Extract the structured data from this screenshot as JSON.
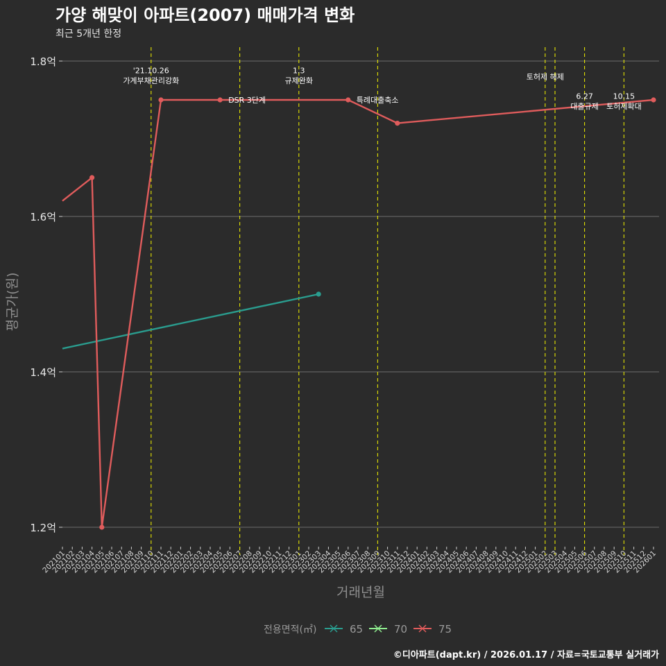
{
  "chart_data": {
    "type": "line",
    "title": "가양 해맞이 아파트(2007) 매매가격 변화",
    "subtitle": "최근 5개년 한정",
    "xlabel": "거래년월",
    "ylabel": "평균가(원)",
    "y_ticks": [
      {
        "value": 1.2,
        "label": "1.2억"
      },
      {
        "value": 1.4,
        "label": "1.4억"
      },
      {
        "value": 1.6,
        "label": "1.6억"
      },
      {
        "value": 1.8,
        "label": "1.8억"
      }
    ],
    "ylim": [
      1.175,
      1.825
    ],
    "x_categories": [
      "202101",
      "202102",
      "202103",
      "202104",
      "202105",
      "202106",
      "202107",
      "202108",
      "202109",
      "202110",
      "202111",
      "202112",
      "202201",
      "202202",
      "202203",
      "202204",
      "202205",
      "202206",
      "202207",
      "202208",
      "202209",
      "202210",
      "202211",
      "202212",
      "202301",
      "202302",
      "202303",
      "202304",
      "202305",
      "202306",
      "202307",
      "202308",
      "202309",
      "202310",
      "202311",
      "202312",
      "202401",
      "202402",
      "202403",
      "202404",
      "202405",
      "202406",
      "202407",
      "202408",
      "202409",
      "202410",
      "202411",
      "202412",
      "202501",
      "202502",
      "202503",
      "202504",
      "202505",
      "202506",
      "202507",
      "202508",
      "202509",
      "202510",
      "202511",
      "202512",
      "202601"
    ],
    "series": [
      {
        "name": "65",
        "color": "#2a9d8f",
        "points": [
          {
            "x": "202101",
            "y": 1.43
          },
          {
            "x": "202303",
            "y": 1.5
          }
        ],
        "markers": [
          "202303"
        ]
      },
      {
        "name": "70",
        "color": "#90ee90",
        "points": [],
        "markers": []
      },
      {
        "name": "75",
        "color": "#e05c5c",
        "points": [
          {
            "x": "202101",
            "y": 1.62
          },
          {
            "x": "202104",
            "y": 1.65
          },
          {
            "x": "202105",
            "y": 1.2
          },
          {
            "x": "202111",
            "y": 1.75
          },
          {
            "x": "202205",
            "y": 1.75
          },
          {
            "x": "202306",
            "y": 1.75
          },
          {
            "x": "202311",
            "y": 1.72
          },
          {
            "x": "202601",
            "y": 1.75
          }
        ],
        "markers": [
          "202104",
          "202105",
          "202111",
          "202205",
          "202306",
          "202311",
          "202601"
        ]
      }
    ],
    "vlines": [
      "202110",
      "202207",
      "202301",
      "202309",
      "202502",
      "202503",
      "202506",
      "202510"
    ],
    "annotations": [
      {
        "x": "202110",
        "y": 1.788,
        "text": "'21.10.26"
      },
      {
        "x": "202110",
        "y": 1.775,
        "text": "가계부채관리강화"
      },
      {
        "x": "202301",
        "y": 1.788,
        "text": "1.3"
      },
      {
        "x": "202301",
        "y": 1.775,
        "text": "규제완화"
      },
      {
        "x": "202205",
        "y": 1.75,
        "text": "DSR 3단계",
        "anchor": "start"
      },
      {
        "x": "202306",
        "y": 1.75,
        "text": "특례대출축소",
        "anchor": "start"
      },
      {
        "x": "202502",
        "y": 1.78,
        "text": "토허제 해제"
      },
      {
        "x": "202506",
        "y": 1.755,
        "text": "6.27"
      },
      {
        "x": "202506",
        "y": 1.742,
        "text": "대출규제"
      },
      {
        "x": "202510",
        "y": 1.755,
        "text": "10.15"
      },
      {
        "x": "202510",
        "y": 1.742,
        "text": "토허제확대"
      }
    ],
    "legend": {
      "title": "전용면적(㎡)",
      "position": "bottom",
      "items": [
        {
          "name": "65",
          "color": "#2a9d8f"
        },
        {
          "name": "70",
          "color": "#90ee90"
        },
        {
          "name": "75",
          "color": "#e05c5c"
        }
      ]
    },
    "caption": "©디아파트(dapt.kr) / 2026.01.17 / 자료=국토교통부 실거래가"
  }
}
